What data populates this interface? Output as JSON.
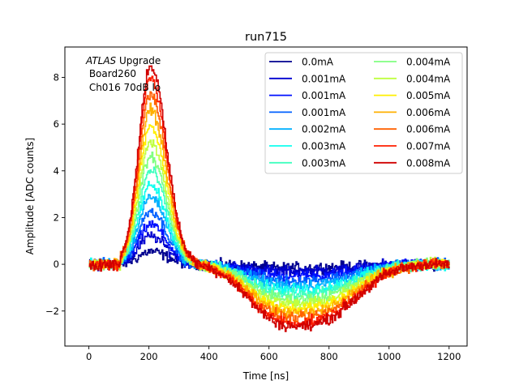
{
  "chart_data": {
    "type": "line",
    "title": "run715",
    "xlabel": "Time [ns]",
    "ylabel": "Amplitude [ADC counts]",
    "xlim": [
      -80,
      1260
    ],
    "ylim": [
      -3.5,
      9.3
    ],
    "xticks": [
      0,
      200,
      400,
      600,
      800,
      1000,
      1200
    ],
    "yticks": [
      -2,
      0,
      2,
      4,
      6,
      8
    ],
    "xtick_labels": [
      "0",
      "200",
      "400",
      "600",
      "800",
      "1000",
      "1200"
    ],
    "ytick_labels": [
      "−2",
      "0",
      "2",
      "4",
      "6",
      "8"
    ],
    "annotation": {
      "line1_italic": "ATLAS",
      "line1_rest": " Upgrade",
      "line2": " Board260",
      "line3": " Ch016 70dB lo"
    },
    "legend_position": "top-right",
    "pulse_model": {
      "x_start": 0,
      "x_end": 1200,
      "x_step": 3,
      "peak_time_ns": 205,
      "undershoot_center_ns": 690
    },
    "series": [
      {
        "name": "0.0mA",
        "color": "#00008f",
        "peak": 0.55,
        "undershoot": -0.15,
        "noise": 0.28
      },
      {
        "name": "0.001mA",
        "color": "#0000d0",
        "peak": 1.2,
        "undershoot": -0.3,
        "noise": 0.28
      },
      {
        "name": "0.001mA",
        "color": "#0010ff",
        "peak": 1.7,
        "undershoot": -0.5,
        "noise": 0.28
      },
      {
        "name": "0.001mA",
        "color": "#0060ff",
        "peak": 2.3,
        "undershoot": -0.7,
        "noise": 0.28
      },
      {
        "name": "0.002mA",
        "color": "#00b0ff",
        "peak": 2.9,
        "undershoot": -0.9,
        "noise": 0.28
      },
      {
        "name": "0.003mA",
        "color": "#10ffef",
        "peak": 3.4,
        "undershoot": -1.1,
        "noise": 0.28
      },
      {
        "name": "0.003mA",
        "color": "#40ffbf",
        "peak": 4.0,
        "undershoot": -1.3,
        "noise": 0.28
      },
      {
        "name": "0.004mA",
        "color": "#80ff80",
        "peak": 4.6,
        "undershoot": -1.5,
        "noise": 0.28
      },
      {
        "name": "0.004mA",
        "color": "#bfff40",
        "peak": 5.2,
        "undershoot": -1.7,
        "noise": 0.28
      },
      {
        "name": "0.005mA",
        "color": "#ffef00",
        "peak": 5.9,
        "undershoot": -1.9,
        "noise": 0.28
      },
      {
        "name": "0.006mA",
        "color": "#ffb000",
        "peak": 6.6,
        "undershoot": -2.1,
        "noise": 0.28
      },
      {
        "name": "0.006mA",
        "color": "#ff6000",
        "peak": 7.3,
        "undershoot": -2.3,
        "noise": 0.28
      },
      {
        "name": "0.007mA",
        "color": "#ff1e00",
        "peak": 8.0,
        "undershoot": -2.5,
        "noise": 0.28
      },
      {
        "name": "0.008mA",
        "color": "#d00000",
        "peak": 8.5,
        "undershoot": -2.65,
        "noise": 0.28
      }
    ]
  }
}
